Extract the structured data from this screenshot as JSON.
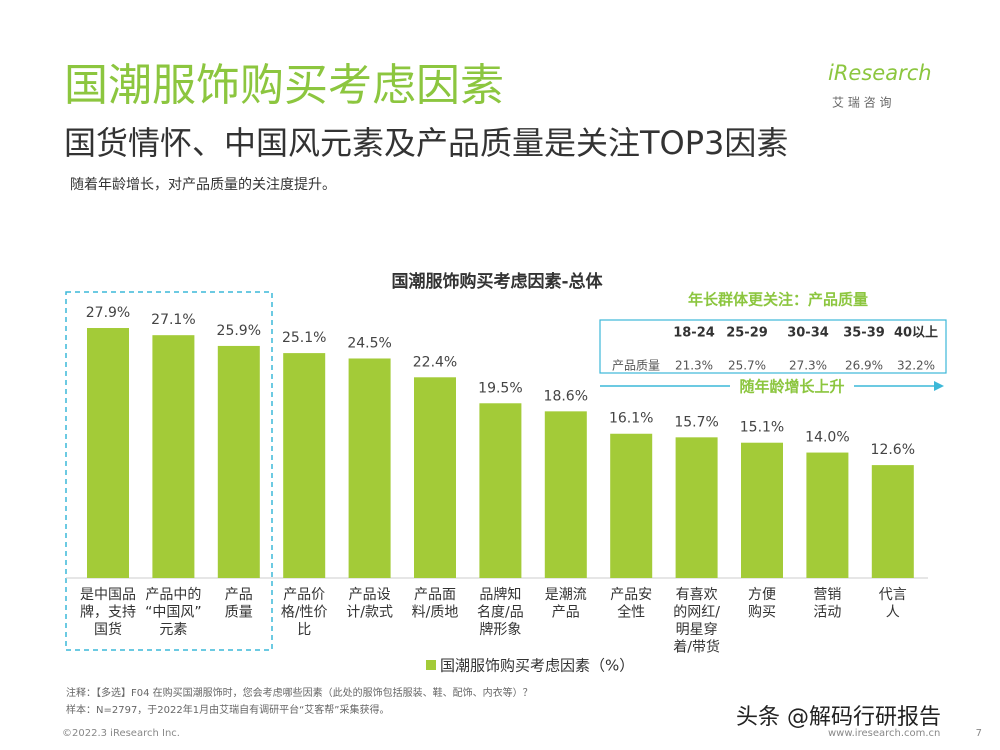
{
  "header": {
    "title": "国潮服饰购买考虑因素",
    "subtitle": "国货情怀、中国风元素及产品质量是关注TOP3因素",
    "description": "随着年龄增长，对产品质量的关注度提升。",
    "logo": "iResearch",
    "logo_sub": "艾 瑞 咨 询"
  },
  "chart_data": {
    "type": "bar",
    "title": "国潮服饰购买考虑因素-总体",
    "categories": [
      [
        "是中国品",
        "牌，支持",
        "国货"
      ],
      [
        "产品中的",
        "“中国风”",
        "元素"
      ],
      [
        "产品",
        "质量"
      ],
      [
        "产品价",
        "格/性价",
        "比"
      ],
      [
        "产品设",
        "计/款式"
      ],
      [
        "产品面",
        "料/质地"
      ],
      [
        "品牌知",
        "名度/品",
        "牌形象"
      ],
      [
        "是潮流",
        "产品"
      ],
      [
        "产品安",
        "全性"
      ],
      [
        "有喜欢",
        "的网红/",
        "明星穿",
        "着/带货"
      ],
      [
        "方便",
        "购买"
      ],
      [
        "营销",
        "活动"
      ],
      [
        "代言",
        "人"
      ]
    ],
    "series": [
      {
        "name": "国潮服饰购买考虑因素（%）",
        "color": "#a3cb38",
        "values": [
          27.9,
          27.1,
          25.9,
          25.1,
          24.5,
          22.4,
          19.5,
          18.6,
          16.1,
          15.7,
          15.1,
          14.0,
          12.6
        ],
        "value_labels": [
          "27.9%",
          "27.1%",
          "25.9%",
          "25.1%",
          "24.5%",
          "22.4%",
          "19.5%",
          "18.6%",
          "16.1%",
          "15.7%",
          "15.1%",
          "14.0%",
          "12.6%"
        ]
      }
    ],
    "legend": "bottom"
  },
  "annotation": {
    "title": "年长群体更关注：产品质量",
    "columns": [
      "18-24",
      "25-29",
      "30-34",
      "35-39",
      "40以上"
    ],
    "row_label": "产品质量",
    "row_values": [
      "21.3%",
      "25.7%",
      "27.3%",
      "26.9%",
      "32.2%"
    ],
    "arrow_label": "随年龄增长上升"
  },
  "footer": {
    "note": "注释：【多选】F04 在购买国潮服饰时，您会考虑哪些因素（此处的服饰包括服装、鞋、配饰、内衣等）？",
    "sample": "样本：N=2797，于2022年1月由艾瑞自有调研平台“艾客帮”采集获得。",
    "copyright": "©2022.3 iResearch Inc.",
    "website": "www.iresearch.com.cn",
    "page": "7",
    "watermark": "头条 @解码行研报告"
  }
}
